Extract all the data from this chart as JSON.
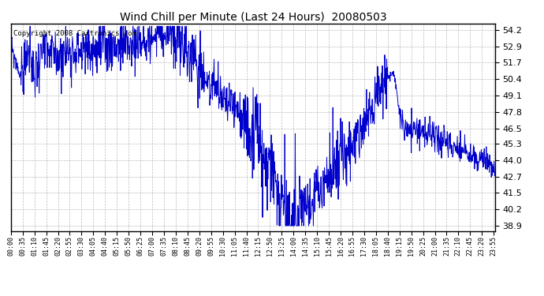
{
  "title": "Wind Chill per Minute (Last 24 Hours)  20080503",
  "copyright": "Copyright 2008 Cartronics.com",
  "line_color": "#0000cc",
  "background_color": "#ffffff",
  "grid_color": "#aaaaaa",
  "grid_style": "--",
  "yticks": [
    38.9,
    40.2,
    41.5,
    42.7,
    44.0,
    45.3,
    46.5,
    47.8,
    49.1,
    50.4,
    51.7,
    52.9,
    54.2
  ],
  "ylim": [
    38.5,
    54.7
  ],
  "xlim": [
    0,
    1439
  ],
  "xtick_labels": [
    "00:00",
    "00:35",
    "01:10",
    "01:45",
    "02:20",
    "02:55",
    "03:30",
    "04:05",
    "04:40",
    "05:15",
    "05:50",
    "06:25",
    "07:00",
    "07:35",
    "08:10",
    "08:45",
    "09:20",
    "09:55",
    "10:30",
    "11:05",
    "11:40",
    "12:15",
    "12:50",
    "13:25",
    "14:00",
    "14:35",
    "15:10",
    "15:45",
    "16:20",
    "16:55",
    "17:30",
    "18:05",
    "18:40",
    "19:15",
    "19:50",
    "20:25",
    "21:00",
    "21:35",
    "22:10",
    "22:45",
    "23:20",
    "23:55"
  ],
  "num_minutes": 1440,
  "xtick_step": 35
}
